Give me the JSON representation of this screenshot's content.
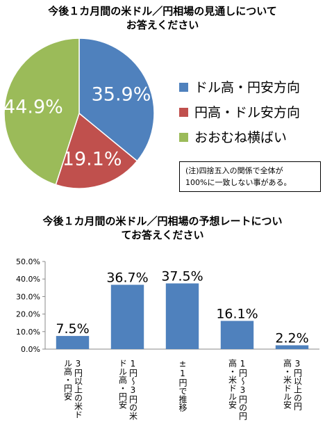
{
  "chart_data": [
    {
      "type": "pie",
      "title_lines": [
        "今後１カ月間の米ドル／円相場の見通しについて",
        "お答えください"
      ],
      "categories": [
        "ドル高・円安方向",
        "円高・ドル安方向",
        "おおむね横ばい"
      ],
      "values": [
        35.9,
        19.1,
        44.9
      ],
      "value_labels": [
        "35.9%",
        "19.1%",
        "44.9%"
      ],
      "colors": [
        "#4f81bd",
        "#c0504d",
        "#9bbb59"
      ],
      "legend_position": "right",
      "note_lines": [
        "(注)四捨五入の関係で全体が",
        "100%に一致しない事がある。"
      ]
    },
    {
      "type": "bar",
      "title_lines": [
        "今後１カ月間の米ドル／円相場の予想レートについ",
        "てお答えください"
      ],
      "categories": [
        "3円以上の米ドル高・円安",
        "1円〜3円の米ドル高・円安",
        "±1円で推移",
        "1円〜3円の円高・米ドル安",
        "3円以上の円高・米ドル安"
      ],
      "category_label_lines": [
        [
          "3円以上の米ド",
          "ル高・円安"
        ],
        [
          "1円〜3円の米",
          "ドル高・円安"
        ],
        [
          "±1円で推移"
        ],
        [
          "1円〜3円の円",
          "高・米ドル安"
        ],
        [
          "3円以上の円",
          "高・米ドル安"
        ]
      ],
      "values": [
        7.5,
        36.7,
        37.5,
        16.1,
        2.2
      ],
      "value_labels": [
        "7.5%",
        "36.7%",
        "37.5%",
        "16.1%",
        "2.2%"
      ],
      "ylim": [
        0,
        50
      ],
      "yticks": [
        "0.0%",
        "10.0%",
        "20.0%",
        "30.0%",
        "40.0%",
        "50.0%"
      ],
      "grid": false,
      "color": "#4f81bd"
    }
  ]
}
